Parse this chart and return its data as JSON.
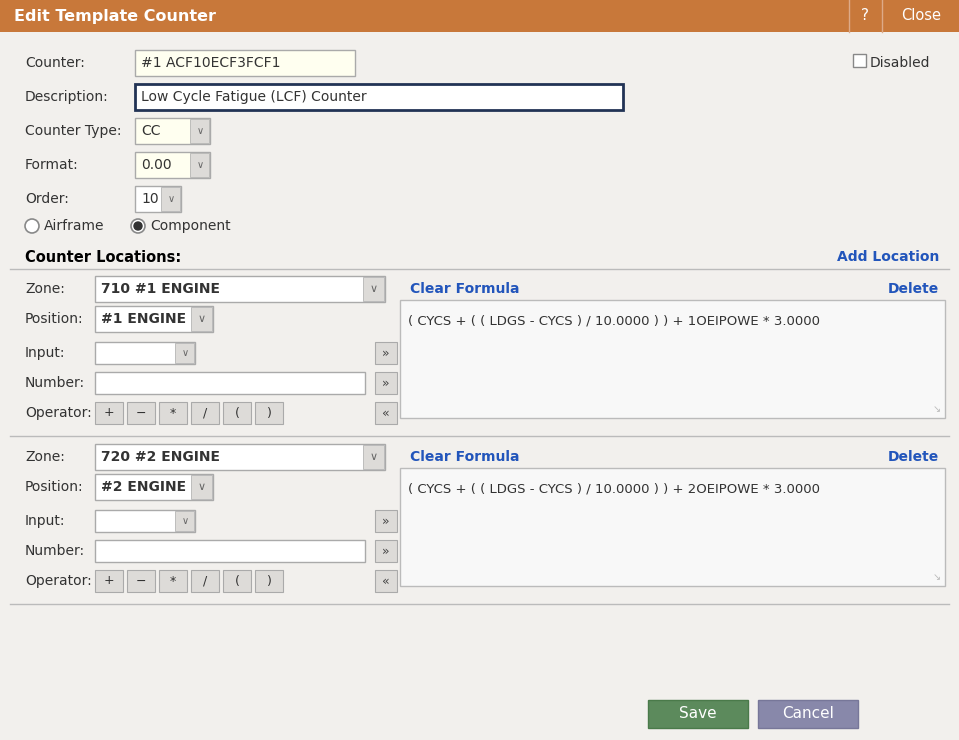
{
  "title": "Edit Template Counter",
  "title_bg": "#C8783A",
  "title_fg": "#FFFFFF",
  "dialog_bg": "#F2F0ED",
  "body_bg": "#F2F0ED",
  "counter_value": "#1 ACF10ECF3FCF1",
  "counter_bg": "#FFFFEE",
  "description_value": "Low Cycle Fatigue (LCF) Counter",
  "counter_type_value": "CC",
  "format_value": "0.00",
  "order_value": "10",
  "zone1": "710 #1 ENGINE",
  "position1": "#1 ENGINE",
  "formula1": "( CYCS + ( ( LDGS - CYCS ) / 10.0000 ) ) + 1OEIPOWE * 3.0000",
  "zone2": "720 #2 ENGINE",
  "position2": "#2 ENGINE",
  "formula2": "( CYCS + ( ( LDGS - CYCS ) / 10.0000 ) ) + 2OEIPOWE * 3.0000",
  "link_color": "#2255BB",
  "delete_color": "#2255BB",
  "btn_save_bg": "#5C8A5C",
  "btn_cancel_bg": "#8888AA",
  "btn_fg": "#FFFFFF",
  "field_bg": "#FFFFFE",
  "yellow_bg": "#FFFFDD",
  "dropdown_arrow_bg": "#DDDBD8",
  "operator_btn_bg": "#DDDBD8",
  "arrow_btn_bg": "#DDDBD8",
  "separator_color": "#CCCCCC"
}
